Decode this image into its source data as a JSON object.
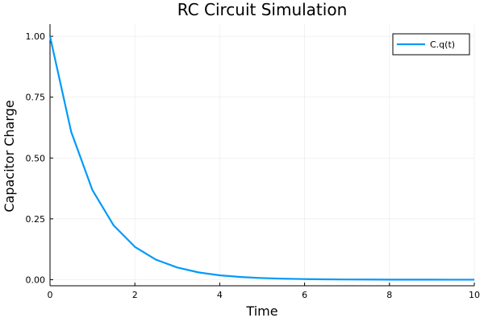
{
  "chart_data": {
    "type": "line",
    "title": "RC Circuit Simulation",
    "xlabel": "Time",
    "ylabel": "Capacitor Charge",
    "xlim": [
      0,
      10
    ],
    "ylim": [
      -0.025,
      1.05
    ],
    "xticks": [
      0,
      2,
      4,
      6,
      8,
      10
    ],
    "xtick_labels": [
      "0",
      "2",
      "4",
      "6",
      "8",
      "10"
    ],
    "yticks": [
      0,
      0.25,
      0.5,
      0.75,
      1
    ],
    "ytick_labels": [
      "0.00",
      "0.25",
      "0.50",
      "0.75",
      "1.00"
    ],
    "grid": true,
    "legend_position": "top-right",
    "series": [
      {
        "name": "C.q(t)",
        "color": "#009af9",
        "x": [
          0,
          0.5,
          1,
          1.5,
          2,
          2.5,
          3,
          3.5,
          4,
          4.5,
          5,
          5.5,
          6,
          6.5,
          7,
          7.5,
          8,
          8.5,
          9,
          9.5,
          10
        ],
        "y": [
          1.0,
          0.607,
          0.368,
          0.223,
          0.135,
          0.082,
          0.05,
          0.03,
          0.018,
          0.011,
          0.0067,
          0.0041,
          0.0025,
          0.0015,
          0.0009,
          0.00055,
          0.00034,
          0.0002,
          0.00012,
          7e-05,
          5e-05
        ]
      }
    ]
  }
}
